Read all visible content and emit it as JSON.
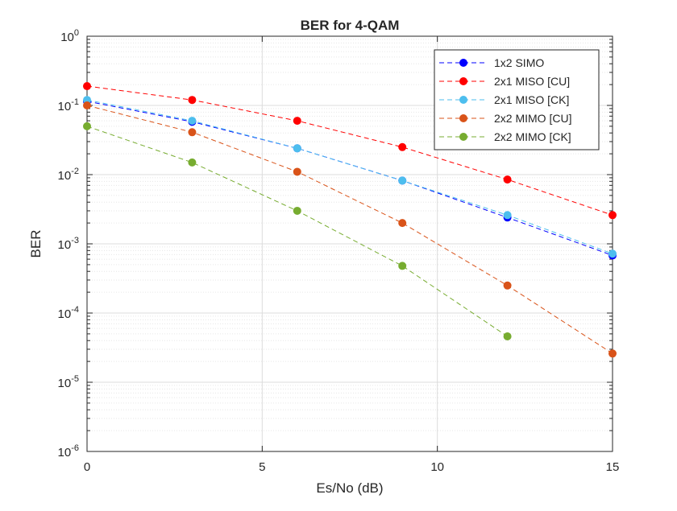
{
  "chart_data": {
    "type": "line",
    "title": "BER for 4-QAM",
    "xlabel": "Es/No (dB)",
    "ylabel": "BER",
    "xlim": [
      0,
      15
    ],
    "ylim": [
      1e-06,
      1
    ],
    "yscale": "log",
    "grid": true,
    "minor_grid": true,
    "legend_position": "top-right",
    "xticks": [
      0,
      5,
      10,
      15
    ],
    "xtick_labels": [
      "0",
      "5",
      "10",
      "15"
    ],
    "yticks": [
      {
        "value": 1e-06,
        "base": "10",
        "exp": "-6"
      },
      {
        "value": 1e-05,
        "base": "10",
        "exp": "-5"
      },
      {
        "value": 0.0001,
        "base": "10",
        "exp": "-4"
      },
      {
        "value": 0.001,
        "base": "10",
        "exp": "-3"
      },
      {
        "value": 0.01,
        "base": "10",
        "exp": "-2"
      },
      {
        "value": 0.1,
        "base": "10",
        "exp": "-1"
      },
      {
        "value": 1,
        "base": "10",
        "exp": "0"
      }
    ],
    "series": [
      {
        "name": "1x2 SIMO",
        "color": "#0000ff",
        "x": [
          0,
          3,
          6,
          9,
          12,
          15
        ],
        "values": [
          0.115,
          0.058,
          0.024,
          0.0082,
          0.0024,
          0.00068
        ]
      },
      {
        "name": "2x1 MISO [CU]",
        "color": "#ff0000",
        "x": [
          0,
          3,
          6,
          9,
          12,
          15
        ],
        "values": [
          0.19,
          0.12,
          0.06,
          0.025,
          0.0085,
          0.0026
        ]
      },
      {
        "name": "2x1 MISO [CK]",
        "color": "#4dbeee",
        "x": [
          0,
          3,
          6,
          9,
          12,
          15
        ],
        "values": [
          0.12,
          0.06,
          0.024,
          0.0082,
          0.0026,
          0.00072
        ]
      },
      {
        "name": "2x2 MIMO [CU]",
        "color": "#d95319",
        "x": [
          0,
          3,
          6,
          9,
          12,
          15
        ],
        "values": [
          0.1,
          0.041,
          0.011,
          0.002,
          0.00025,
          2.6e-05
        ]
      },
      {
        "name": "2x2 MIMO [CK]",
        "color": "#77ac30",
        "x": [
          0,
          3,
          6,
          9,
          12
        ],
        "values": [
          0.05,
          0.015,
          0.003,
          0.00048,
          4.6e-05
        ]
      }
    ]
  }
}
